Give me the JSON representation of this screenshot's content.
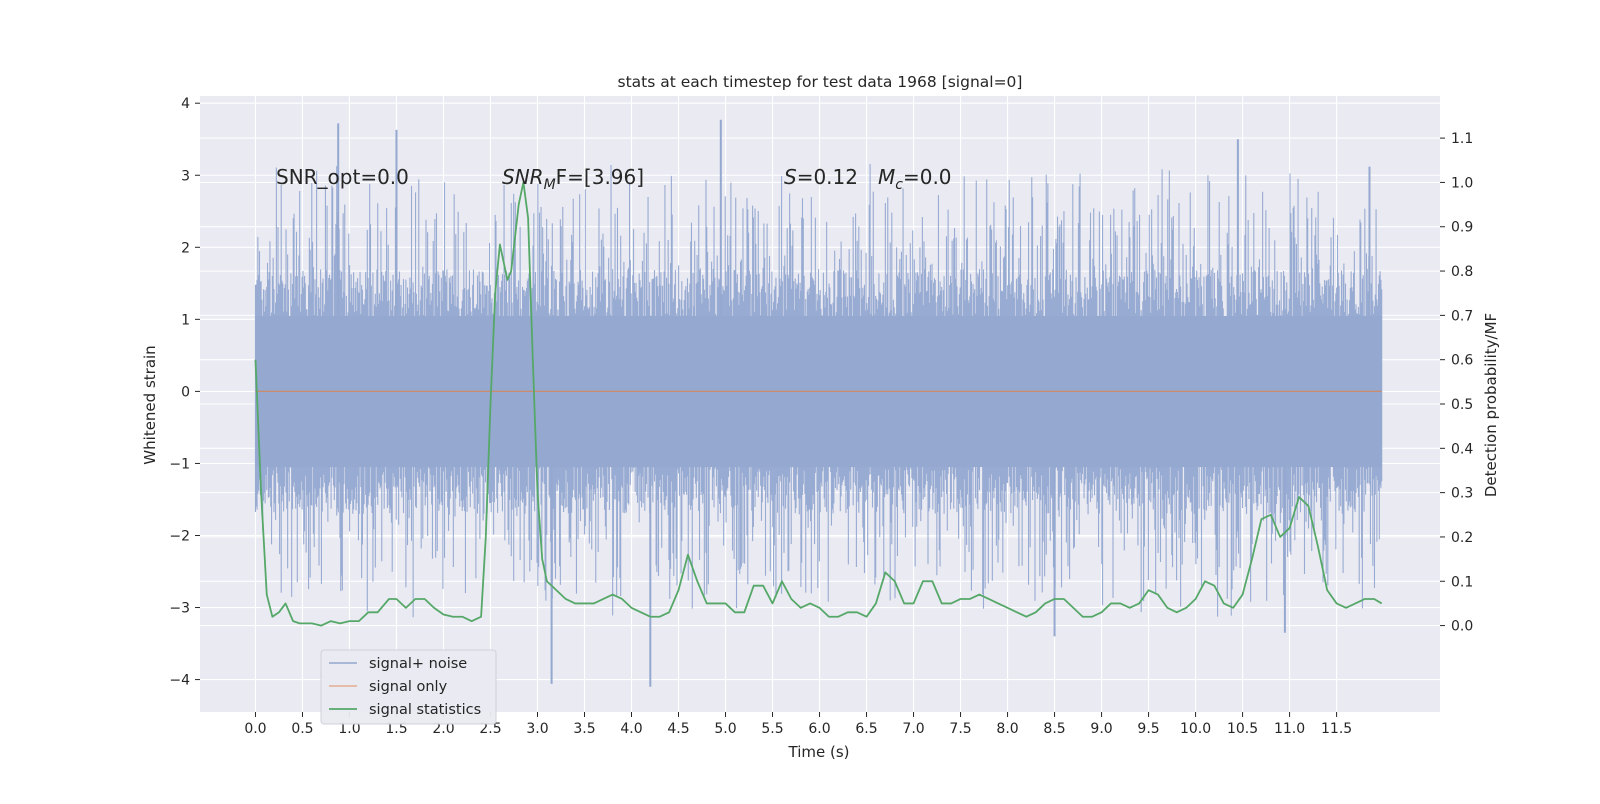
{
  "chart_data": {
    "type": "line",
    "title": "stats at each timestep for test data 1968 [signal=0]",
    "xlabel": "Time (s)",
    "ylabel": "Whitened strain",
    "y2label": "Detection probability/MF",
    "xlim": [
      -0.59,
      12.6
    ],
    "ylim": [
      -4.45,
      4.1
    ],
    "y2lim": [
      -0.195,
      1.195
    ],
    "x_ticks": [
      0.0,
      0.5,
      1.0,
      1.5,
      2.0,
      2.5,
      3.0,
      3.5,
      4.0,
      4.5,
      5.0,
      5.5,
      6.0,
      6.5,
      7.0,
      7.5,
      8.0,
      8.5,
      9.0,
      9.5,
      10.0,
      10.5,
      11.0,
      11.5
    ],
    "x_tick_labels": [
      "0.0",
      "0.5",
      "1.0",
      "1.5",
      "2.0",
      "2.5",
      "3.0",
      "3.5",
      "4.0",
      "4.5",
      "5.0",
      "5.5",
      "6.0",
      "6.5",
      "7.0",
      "7.5",
      "8.0",
      "8.5",
      "9.0",
      "9.5",
      "10.0",
      "10.5",
      "11.0",
      "11.5"
    ],
    "y_ticks": [
      -4,
      -3,
      -2,
      -1,
      0,
      1,
      2,
      3,
      4
    ],
    "y_tick_labels": [
      "−4",
      "−3",
      "−2",
      "−1",
      "0",
      "1",
      "2",
      "3",
      "4"
    ],
    "y2_ticks": [
      0.0,
      0.1,
      0.2,
      0.3,
      0.4,
      0.5,
      0.6,
      0.7,
      0.8,
      0.9,
      1.0,
      1.1
    ],
    "y2_tick_labels": [
      "0.0",
      "0.1",
      "0.2",
      "0.3",
      "0.4",
      "0.5",
      "0.6",
      "0.7",
      "0.8",
      "0.9",
      "1.0",
      "1.1"
    ],
    "grid": true,
    "legend_position": "lower-left",
    "annotations": {
      "snr_opt": "SNR_opt=0.0",
      "snr_mf_main": "SNR",
      "snr_mf_sub": "M",
      "snr_mf_rest": "F=[3.96]",
      "s_main": "S",
      "s_rest": "=0.12",
      "mc_main": "M",
      "mc_sub": "c",
      "mc_rest": "=0.0"
    },
    "series": [
      {
        "name": "signal+ noise",
        "color": "#94a8d0",
        "x_range": [
          0.0,
          11.98
        ],
        "envelope_positive_typical": 1.7,
        "envelope_negative_typical": -1.7,
        "peaks": [
          [
            0.88,
            3.72
          ],
          [
            1.5,
            3.63
          ],
          [
            4.95,
            3.77
          ],
          [
            10.45,
            3.5
          ],
          [
            11.85,
            3.12
          ],
          [
            3.15,
            -4.06
          ],
          [
            4.2,
            -4.1
          ],
          [
            8.5,
            -3.4
          ],
          [
            10.95,
            -3.35
          ]
        ]
      },
      {
        "name": "signal only",
        "color": "#dd8452",
        "x": [
          0.0,
          11.98
        ],
        "y": [
          0.0,
          0.0
        ]
      },
      {
        "name": "signal statistics",
        "color": "#55a868",
        "axis": "right",
        "x": [
          0.0,
          0.06,
          0.12,
          0.18,
          0.25,
          0.32,
          0.4,
          0.47,
          0.53,
          0.6,
          0.7,
          0.8,
          0.9,
          1.0,
          1.1,
          1.2,
          1.3,
          1.42,
          1.5,
          1.6,
          1.7,
          1.8,
          1.9,
          2.0,
          2.1,
          2.2,
          2.3,
          2.4,
          2.45,
          2.5,
          2.55,
          2.6,
          2.68,
          2.72,
          2.8,
          2.85,
          2.9,
          2.95,
          3.0,
          3.05,
          3.1,
          3.2,
          3.3,
          3.4,
          3.5,
          3.6,
          3.7,
          3.8,
          3.9,
          4.0,
          4.1,
          4.2,
          4.3,
          4.4,
          4.5,
          4.6,
          4.7,
          4.8,
          4.9,
          5.0,
          5.1,
          5.2,
          5.3,
          5.4,
          5.5,
          5.6,
          5.7,
          5.8,
          5.9,
          6.0,
          6.1,
          6.2,
          6.3,
          6.4,
          6.5,
          6.6,
          6.7,
          6.8,
          6.9,
          7.0,
          7.1,
          7.2,
          7.3,
          7.4,
          7.5,
          7.6,
          7.7,
          7.8,
          7.9,
          8.0,
          8.1,
          8.2,
          8.3,
          8.4,
          8.5,
          8.6,
          8.7,
          8.8,
          8.9,
          9.0,
          9.1,
          9.2,
          9.3,
          9.4,
          9.5,
          9.6,
          9.7,
          9.8,
          9.9,
          10.0,
          10.1,
          10.2,
          10.3,
          10.4,
          10.5,
          10.6,
          10.7,
          10.8,
          10.9,
          11.0,
          11.1,
          11.2,
          11.3,
          11.4,
          11.5,
          11.6,
          11.7,
          11.8,
          11.9,
          11.98
        ],
        "y": [
          0.6,
          0.3,
          0.07,
          0.02,
          0.03,
          0.05,
          0.01,
          0.005,
          0.005,
          0.005,
          0.0,
          0.01,
          0.005,
          0.01,
          0.01,
          0.03,
          0.03,
          0.06,
          0.06,
          0.04,
          0.06,
          0.06,
          0.04,
          0.025,
          0.02,
          0.02,
          0.01,
          0.02,
          0.2,
          0.5,
          0.75,
          0.86,
          0.78,
          0.8,
          0.95,
          1.0,
          0.92,
          0.6,
          0.3,
          0.15,
          0.1,
          0.08,
          0.06,
          0.05,
          0.05,
          0.05,
          0.06,
          0.07,
          0.06,
          0.04,
          0.03,
          0.02,
          0.02,
          0.03,
          0.08,
          0.16,
          0.1,
          0.05,
          0.05,
          0.05,
          0.03,
          0.03,
          0.09,
          0.09,
          0.05,
          0.1,
          0.06,
          0.04,
          0.05,
          0.04,
          0.02,
          0.02,
          0.03,
          0.03,
          0.02,
          0.05,
          0.12,
          0.1,
          0.05,
          0.05,
          0.1,
          0.1,
          0.05,
          0.05,
          0.06,
          0.06,
          0.07,
          0.06,
          0.05,
          0.04,
          0.03,
          0.02,
          0.03,
          0.05,
          0.06,
          0.06,
          0.04,
          0.02,
          0.02,
          0.03,
          0.05,
          0.05,
          0.04,
          0.05,
          0.08,
          0.07,
          0.04,
          0.03,
          0.04,
          0.06,
          0.1,
          0.09,
          0.05,
          0.04,
          0.07,
          0.15,
          0.24,
          0.25,
          0.2,
          0.22,
          0.29,
          0.27,
          0.18,
          0.08,
          0.05,
          0.04,
          0.05,
          0.06,
          0.06,
          0.05
        ]
      }
    ]
  }
}
